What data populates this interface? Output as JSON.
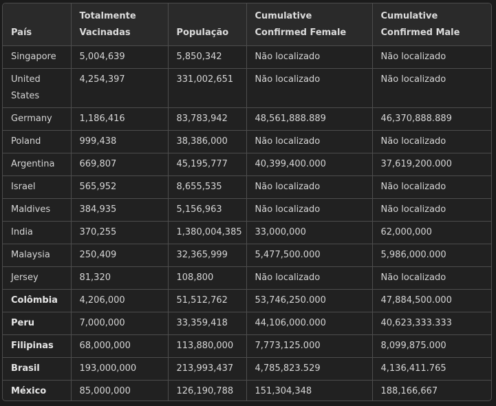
{
  "table": {
    "headers": [
      "País",
      "Totalmente Vacinadas",
      "População",
      "Cumulative Confirmed Female",
      "Cumulative Confirmed Male"
    ],
    "rows": [
      {
        "pais": "Singapore",
        "vacinadas": "5,004,639",
        "populacao": "5,850,342",
        "female": "Não localizado",
        "male": "Não localizado",
        "bold": false
      },
      {
        "pais": "United States",
        "vacinadas": "4,254,397",
        "populacao": "331,002,651",
        "female": "Não localizado",
        "male": "Não localizado",
        "bold": false
      },
      {
        "pais": "Germany",
        "vacinadas": "1,186,416",
        "populacao": "83,783,942",
        "female": "48,561,888.889",
        "male": "46,370,888.889",
        "bold": false
      },
      {
        "pais": "Poland",
        "vacinadas": "999,438",
        "populacao": "38,386,000",
        "female": "Não localizado",
        "male": "Não localizado",
        "bold": false
      },
      {
        "pais": "Argentina",
        "vacinadas": "669,807",
        "populacao": "45,195,777",
        "female": "40,399,400.000",
        "male": "37,619,200.000",
        "bold": false
      },
      {
        "pais": "Israel",
        "vacinadas": "565,952",
        "populacao": "8,655,535",
        "female": "Não localizado",
        "male": "Não localizado",
        "bold": false
      },
      {
        "pais": "Maldives",
        "vacinadas": "384,935",
        "populacao": "5,156,963",
        "female": "Não localizado",
        "male": "Não localizado",
        "bold": false
      },
      {
        "pais": "India",
        "vacinadas": "370,255",
        "populacao": "1,380,004,385",
        "female": "33,000,000",
        "male": "62,000,000",
        "bold": false
      },
      {
        "pais": "Malaysia",
        "vacinadas": "250,409",
        "populacao": "32,365,999",
        "female": "5,477,500.000",
        "male": "5,986,000.000",
        "bold": false
      },
      {
        "pais": "Jersey",
        "vacinadas": "81,320",
        "populacao": "108,800",
        "female": "Não localizado",
        "male": "Não localizado",
        "bold": false
      },
      {
        "pais": "Colômbia",
        "vacinadas": "4,206,000",
        "populacao": "51,512,762",
        "female": "53,746,250.000",
        "male": "47,884,500.000",
        "bold": true
      },
      {
        "pais": "Peru",
        "vacinadas": "7,000,000",
        "populacao": "33,359,418",
        "female": "44,106,000.000",
        "male": "40,623,333.333",
        "bold": true
      },
      {
        "pais": "Filipinas",
        "vacinadas": "68,000,000",
        "populacao": "113,880,000",
        "female": "7,773,125.000",
        "male": "8,099,875.000",
        "bold": true
      },
      {
        "pais": "Brasil",
        "vacinadas": "193,000,000",
        "populacao": "213,993,437",
        "female": "4,785,823.529",
        "male": "4,136,411.765",
        "bold": true
      },
      {
        "pais": "México",
        "vacinadas": "85,000,000",
        "populacao": "126,190,788",
        "female": "151,304,348",
        "male": "188,166,667",
        "bold": true
      }
    ]
  }
}
